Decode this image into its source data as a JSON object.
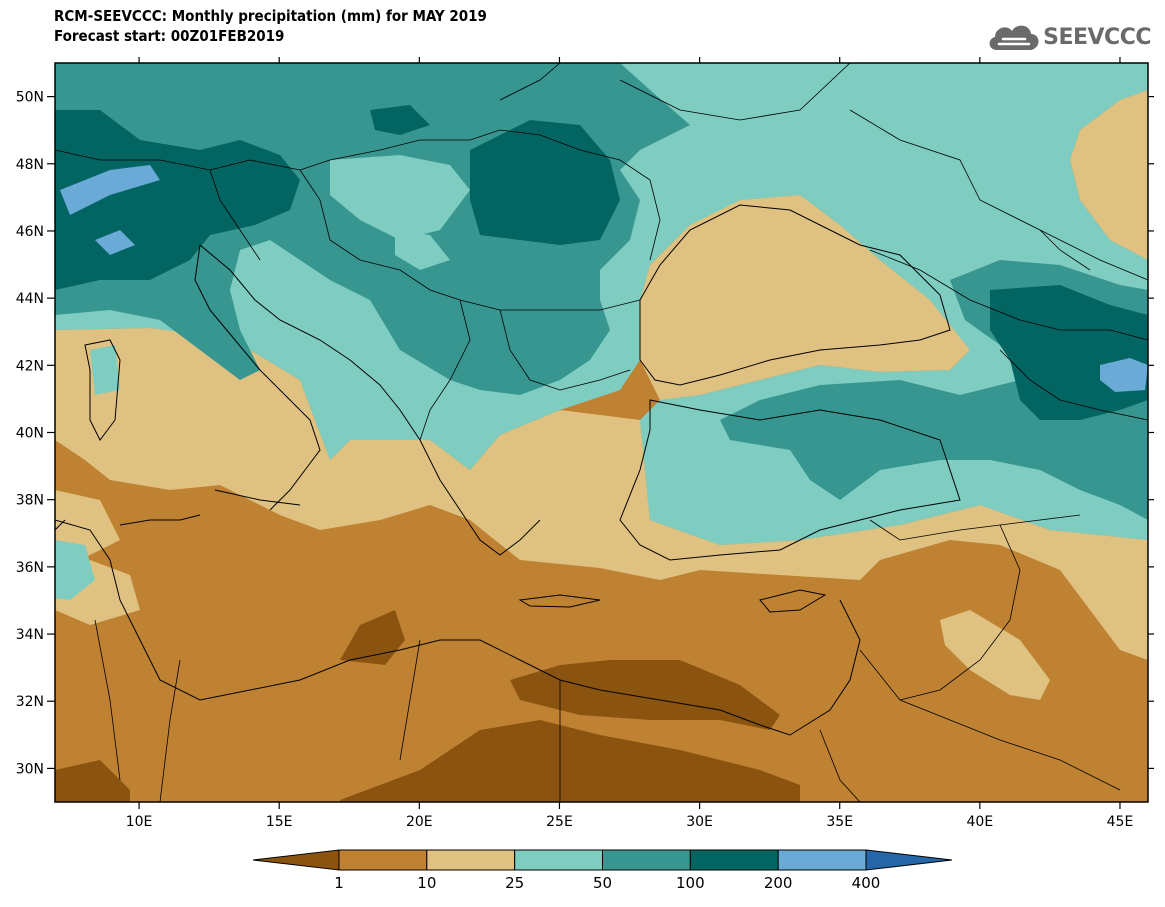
{
  "header": {
    "title": "RCM-SEEVCCC: Monthly precipitation (mm) for MAY 2019",
    "subtitle": "Forecast start: 00Z01FEB2019",
    "logo_text": "SEEVCCC",
    "logo_icon": "cloud-icon"
  },
  "map": {
    "lon_range": [
      7,
      46
    ],
    "lat_range": [
      29,
      51
    ],
    "lat_ticks": [
      {
        "value": 50,
        "label": "50N"
      },
      {
        "value": 48,
        "label": "48N"
      },
      {
        "value": 46,
        "label": "46N"
      },
      {
        "value": 44,
        "label": "44N"
      },
      {
        "value": 42,
        "label": "42N"
      },
      {
        "value": 40,
        "label": "40N"
      },
      {
        "value": 38,
        "label": "38N"
      },
      {
        "value": 36,
        "label": "36N"
      },
      {
        "value": 34,
        "label": "34N"
      },
      {
        "value": 32,
        "label": "32N"
      },
      {
        "value": 30,
        "label": "30N"
      }
    ],
    "lon_ticks": [
      {
        "value": 10,
        "label": "10E"
      },
      {
        "value": 15,
        "label": "15E"
      },
      {
        "value": 20,
        "label": "20E"
      },
      {
        "value": 25,
        "label": "25E"
      },
      {
        "value": 30,
        "label": "30E"
      },
      {
        "value": 35,
        "label": "35E"
      },
      {
        "value": 40,
        "label": "40E"
      },
      {
        "value": 45,
        "label": "45E"
      }
    ]
  },
  "legend": {
    "colors": [
      "#8a5410",
      "#bf8232",
      "#dfc281",
      "#7fccc0",
      "#379690",
      "#036562",
      "#6aaad6",
      "#2566a8"
    ],
    "labels": [
      "1",
      "10",
      "25",
      "50",
      "100",
      "200",
      "400"
    ]
  }
}
